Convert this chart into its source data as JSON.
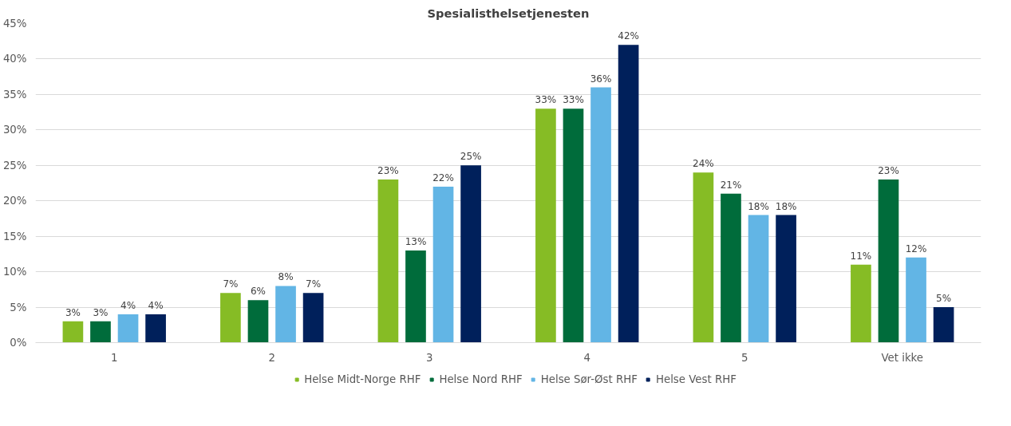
{
  "chart_data": {
    "type": "bar",
    "title": "Spesialisthelsetjenesten",
    "categories": [
      "1",
      "2",
      "3",
      "4",
      "5",
      "Vet ikke"
    ],
    "series": [
      {
        "name": "Helse Midt-Norge RHF",
        "color": "#86bc25",
        "values": [
          3,
          7,
          23,
          33,
          24,
          11
        ],
        "value_labels": [
          "3%",
          "7%",
          "23%",
          "33%",
          "24%",
          "11%"
        ]
      },
      {
        "name": "Helse Nord RHF",
        "color": "#006c3b",
        "values": [
          3,
          6,
          13,
          33,
          21,
          23
        ],
        "value_labels": [
          "3%",
          "6%",
          "13%",
          "33%",
          "21%",
          "23%"
        ]
      },
      {
        "name": "Helse Sør-Øst RHF",
        "color": "#62b5e5",
        "values": [
          4,
          8,
          22,
          36,
          18,
          12
        ],
        "value_labels": [
          "4%",
          "8%",
          "22%",
          "36%",
          "18%",
          "12%"
        ]
      },
      {
        "name": "Helse Vest RHF",
        "color": "#00205b",
        "values": [
          4,
          7,
          25,
          42,
          18,
          5
        ],
        "value_labels": [
          "4%",
          "7%",
          "25%",
          "42%",
          "18%",
          "5%"
        ]
      }
    ],
    "ylim": [
      0,
      45
    ],
    "yticks": [
      {
        "value": 0,
        "label": "0%"
      },
      {
        "value": 5,
        "label": "5%"
      },
      {
        "value": 10,
        "label": "10%"
      },
      {
        "value": 15,
        "label": "15%"
      },
      {
        "value": 20,
        "label": "20%"
      },
      {
        "value": 25,
        "label": "25%"
      },
      {
        "value": 30,
        "label": "30%"
      },
      {
        "value": 35,
        "label": "35%"
      },
      {
        "value": 40,
        "label": "40%"
      },
      {
        "value": 45,
        "label": "45%"
      }
    ],
    "grid": "y",
    "legend": "bottom"
  }
}
